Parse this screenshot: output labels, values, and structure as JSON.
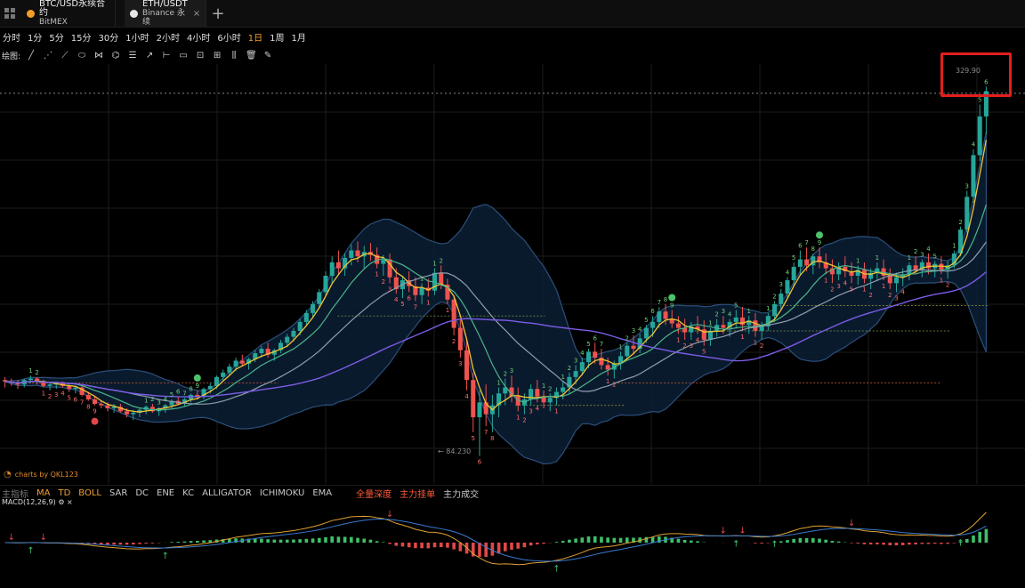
{
  "tabs": [
    {
      "title": "BTC/USD永续合约",
      "subtitle": "BitMEX",
      "color": "#f29d2a"
    },
    {
      "title": "ETH/USDT",
      "subtitle": "Binance 永续",
      "color": "#e6e6e6",
      "close": "×"
    }
  ],
  "add_tab_label": "+",
  "periods": [
    "分时",
    "1分",
    "5分",
    "15分",
    "30分",
    "1小时",
    "2小时",
    "4小时",
    "6小时",
    "1日",
    "1周",
    "1月"
  ],
  "active_period": "1日",
  "draw_label": "绘图:",
  "draw_tools": [
    "line-tool-icon",
    "multi-line-tool-icon",
    "channel-tool-icon",
    "shape-tool-icon",
    "fib-tool-icon",
    "pattern-tool-icon",
    "measure-tool-icon",
    "arrow-tool-icon",
    "range-tool-icon",
    "note-tool-icon",
    "magnet-tool-icon",
    "lock-tool-icon",
    "visibility-tool-icon",
    "trash-tool-icon",
    "pencil-tool-icon"
  ],
  "price_label": "329.90",
  "low_label": "84.230",
  "watermark": "charts by QKL123",
  "indicators": {
    "main_label": "主指标",
    "main": [
      "MA",
      "TD",
      "BOLL",
      "SAR",
      "DC",
      "ENE",
      "KC",
      "ALLIGATOR",
      "ICHIMOKU",
      "EMA"
    ],
    "active": [
      "MA",
      "TD",
      "BOLL"
    ],
    "extras": [
      "全量深度",
      "主力挂单",
      "主力成交"
    ]
  },
  "macd_label": "MACD(12,26,9)",
  "colors": {
    "up": "#26a69a",
    "down": "#ef5350",
    "accent": "#f0a033",
    "ma_fast": "#f2c531",
    "ma_mid": "#4bb58a",
    "ma_slow": "#8f9fb0",
    "ma_long": "#7b5ce6",
    "boll_fill": "#0d2138",
    "boll_edge": "#2b4f7a"
  },
  "chart_data": {
    "type": "candlestick",
    "ohlc": [
      [
        135,
        137,
        130,
        134
      ],
      [
        134,
        136,
        131,
        133
      ],
      [
        133,
        135,
        129,
        132
      ],
      [
        132,
        136,
        130,
        135
      ],
      [
        135,
        138,
        133,
        136
      ],
      [
        136,
        137,
        132,
        134
      ],
      [
        134,
        135,
        130,
        131
      ],
      [
        131,
        133,
        128,
        132
      ],
      [
        132,
        134,
        129,
        133
      ],
      [
        133,
        134,
        130,
        131
      ],
      [
        131,
        132,
        127,
        129
      ],
      [
        129,
        131,
        126,
        130
      ],
      [
        130,
        131,
        124,
        125
      ],
      [
        125,
        127,
        121,
        122
      ],
      [
        122,
        124,
        118,
        119
      ],
      [
        119,
        121,
        116,
        118
      ],
      [
        118,
        120,
        114,
        116
      ],
      [
        116,
        119,
        113,
        117
      ],
      [
        117,
        119,
        113,
        114
      ],
      [
        114,
        116,
        110,
        112
      ],
      [
        112,
        115,
        108,
        113
      ],
      [
        113,
        116,
        110,
        115
      ],
      [
        115,
        118,
        112,
        117
      ],
      [
        117,
        119,
        113,
        114
      ],
      [
        114,
        117,
        111,
        116
      ],
      [
        116,
        119,
        113,
        118
      ],
      [
        118,
        122,
        116,
        121
      ],
      [
        121,
        124,
        118,
        119
      ],
      [
        119,
        123,
        117,
        122
      ],
      [
        122,
        126,
        120,
        125
      ],
      [
        125,
        128,
        122,
        124
      ],
      [
        124,
        130,
        122,
        129
      ],
      [
        129,
        133,
        126,
        131
      ],
      [
        131,
        138,
        129,
        137
      ],
      [
        137,
        142,
        134,
        140
      ],
      [
        140,
        146,
        138,
        144
      ],
      [
        144,
        150,
        141,
        148
      ],
      [
        148,
        152,
        144,
        146
      ],
      [
        146,
        150,
        142,
        149
      ],
      [
        149,
        155,
        147,
        153
      ],
      [
        153,
        158,
        150,
        156
      ],
      [
        156,
        160,
        150,
        152
      ],
      [
        152,
        156,
        148,
        155
      ],
      [
        155,
        162,
        153,
        160
      ],
      [
        160,
        166,
        157,
        164
      ],
      [
        164,
        170,
        161,
        168
      ],
      [
        168,
        176,
        165,
        174
      ],
      [
        174,
        182,
        171,
        180
      ],
      [
        180,
        188,
        177,
        186
      ],
      [
        186,
        196,
        183,
        194
      ],
      [
        194,
        208,
        191,
        205
      ],
      [
        205,
        218,
        200,
        214
      ],
      [
        214,
        222,
        206,
        210
      ],
      [
        210,
        220,
        205,
        217
      ],
      [
        217,
        226,
        212,
        222
      ],
      [
        222,
        228,
        214,
        218
      ],
      [
        218,
        225,
        210,
        221
      ],
      [
        221,
        227,
        215,
        219
      ],
      [
        219,
        224,
        210,
        213
      ],
      [
        213,
        219,
        205,
        216
      ],
      [
        216,
        220,
        200,
        204
      ],
      [
        204,
        210,
        193,
        196
      ],
      [
        196,
        205,
        190,
        202
      ],
      [
        202,
        208,
        194,
        198
      ],
      [
        198,
        204,
        188,
        192
      ],
      [
        192,
        200,
        186,
        197
      ],
      [
        197,
        203,
        191,
        195
      ],
      [
        195,
        210,
        192,
        207
      ],
      [
        207,
        212,
        196,
        199
      ],
      [
        199,
        203,
        186,
        189
      ],
      [
        189,
        192,
        165,
        170
      ],
      [
        170,
        176,
        150,
        155
      ],
      [
        155,
        162,
        128,
        135
      ],
      [
        135,
        140,
        100,
        110
      ],
      [
        110,
        128,
        84,
        120
      ],
      [
        120,
        132,
        104,
        112
      ],
      [
        112,
        125,
        100,
        118
      ],
      [
        118,
        130,
        110,
        126
      ],
      [
        126,
        136,
        118,
        130
      ],
      [
        130,
        138,
        120,
        124
      ],
      [
        124,
        130,
        114,
        118
      ],
      [
        118,
        126,
        112,
        122
      ],
      [
        122,
        132,
        118,
        129
      ],
      [
        129,
        135,
        120,
        124
      ],
      [
        124,
        128,
        116,
        120
      ],
      [
        120,
        126,
        114,
        123
      ],
      [
        123,
        130,
        118,
        127
      ],
      [
        127,
        134,
        122,
        130
      ],
      [
        130,
        140,
        126,
        137
      ],
      [
        137,
        145,
        132,
        141
      ],
      [
        141,
        150,
        138,
        147
      ],
      [
        147,
        156,
        143,
        154
      ],
      [
        154,
        160,
        146,
        150
      ],
      [
        150,
        156,
        142,
        145
      ],
      [
        145,
        150,
        138,
        142
      ],
      [
        142,
        148,
        136,
        146
      ],
      [
        146,
        154,
        142,
        151
      ],
      [
        151,
        160,
        148,
        158
      ],
      [
        158,
        165,
        152,
        156
      ],
      [
        156,
        166,
        153,
        163
      ],
      [
        163,
        172,
        160,
        170
      ],
      [
        170,
        178,
        164,
        174
      ],
      [
        174,
        184,
        170,
        181
      ],
      [
        181,
        186,
        172,
        176
      ],
      [
        176,
        182,
        170,
        173
      ],
      [
        173,
        178,
        166,
        170
      ],
      [
        170,
        176,
        162,
        167
      ],
      [
        167,
        174,
        162,
        171
      ],
      [
        171,
        178,
        166,
        169
      ],
      [
        169,
        175,
        158,
        162
      ],
      [
        162,
        170,
        158,
        168
      ],
      [
        168,
        176,
        164,
        172
      ],
      [
        172,
        178,
        166,
        170
      ],
      [
        170,
        176,
        164,
        174
      ],
      [
        174,
        182,
        170,
        177
      ],
      [
        177,
        184,
        168,
        172
      ],
      [
        172,
        178,
        166,
        175
      ],
      [
        175,
        180,
        164,
        168
      ],
      [
        168,
        174,
        162,
        171
      ],
      [
        171,
        180,
        168,
        178
      ],
      [
        178,
        188,
        174,
        186
      ],
      [
        186,
        196,
        182,
        193
      ],
      [
        193,
        204,
        190,
        202
      ],
      [
        202,
        214,
        198,
        211
      ],
      [
        211,
        222,
        205,
        216
      ],
      [
        216,
        224,
        208,
        212
      ],
      [
        212,
        220,
        206,
        218
      ],
      [
        218,
        224,
        210,
        214
      ],
      [
        214,
        220,
        206,
        210
      ],
      [
        210,
        216,
        200,
        206
      ],
      [
        206,
        214,
        202,
        211
      ],
      [
        211,
        218,
        204,
        208
      ],
      [
        208,
        214,
        200,
        205
      ],
      [
        205,
        212,
        199,
        209
      ],
      [
        209,
        214,
        200,
        203
      ],
      [
        203,
        210,
        196,
        207
      ],
      [
        207,
        214,
        202,
        210
      ],
      [
        210,
        216,
        202,
        205
      ],
      [
        205,
        210,
        196,
        200
      ],
      [
        200,
        207,
        194,
        204
      ],
      [
        204,
        210,
        198,
        206
      ],
      [
        206,
        214,
        202,
        212
      ],
      [
        212,
        218,
        206,
        209
      ],
      [
        209,
        216,
        204,
        214
      ],
      [
        214,
        220,
        206,
        210
      ],
      [
        210,
        215,
        204,
        213
      ],
      [
        213,
        218,
        206,
        209
      ],
      [
        209,
        215,
        203,
        212
      ],
      [
        212,
        222,
        210,
        220
      ],
      [
        220,
        238,
        218,
        236
      ],
      [
        236,
        262,
        234,
        258
      ],
      [
        258,
        290,
        254,
        286
      ],
      [
        286,
        320,
        282,
        312
      ],
      [
        312,
        332,
        300,
        329
      ]
    ],
    "price_marker": 329.9,
    "low_marker": 84.23,
    "macd": {
      "params": [
        12,
        26,
        9
      ]
    }
  }
}
